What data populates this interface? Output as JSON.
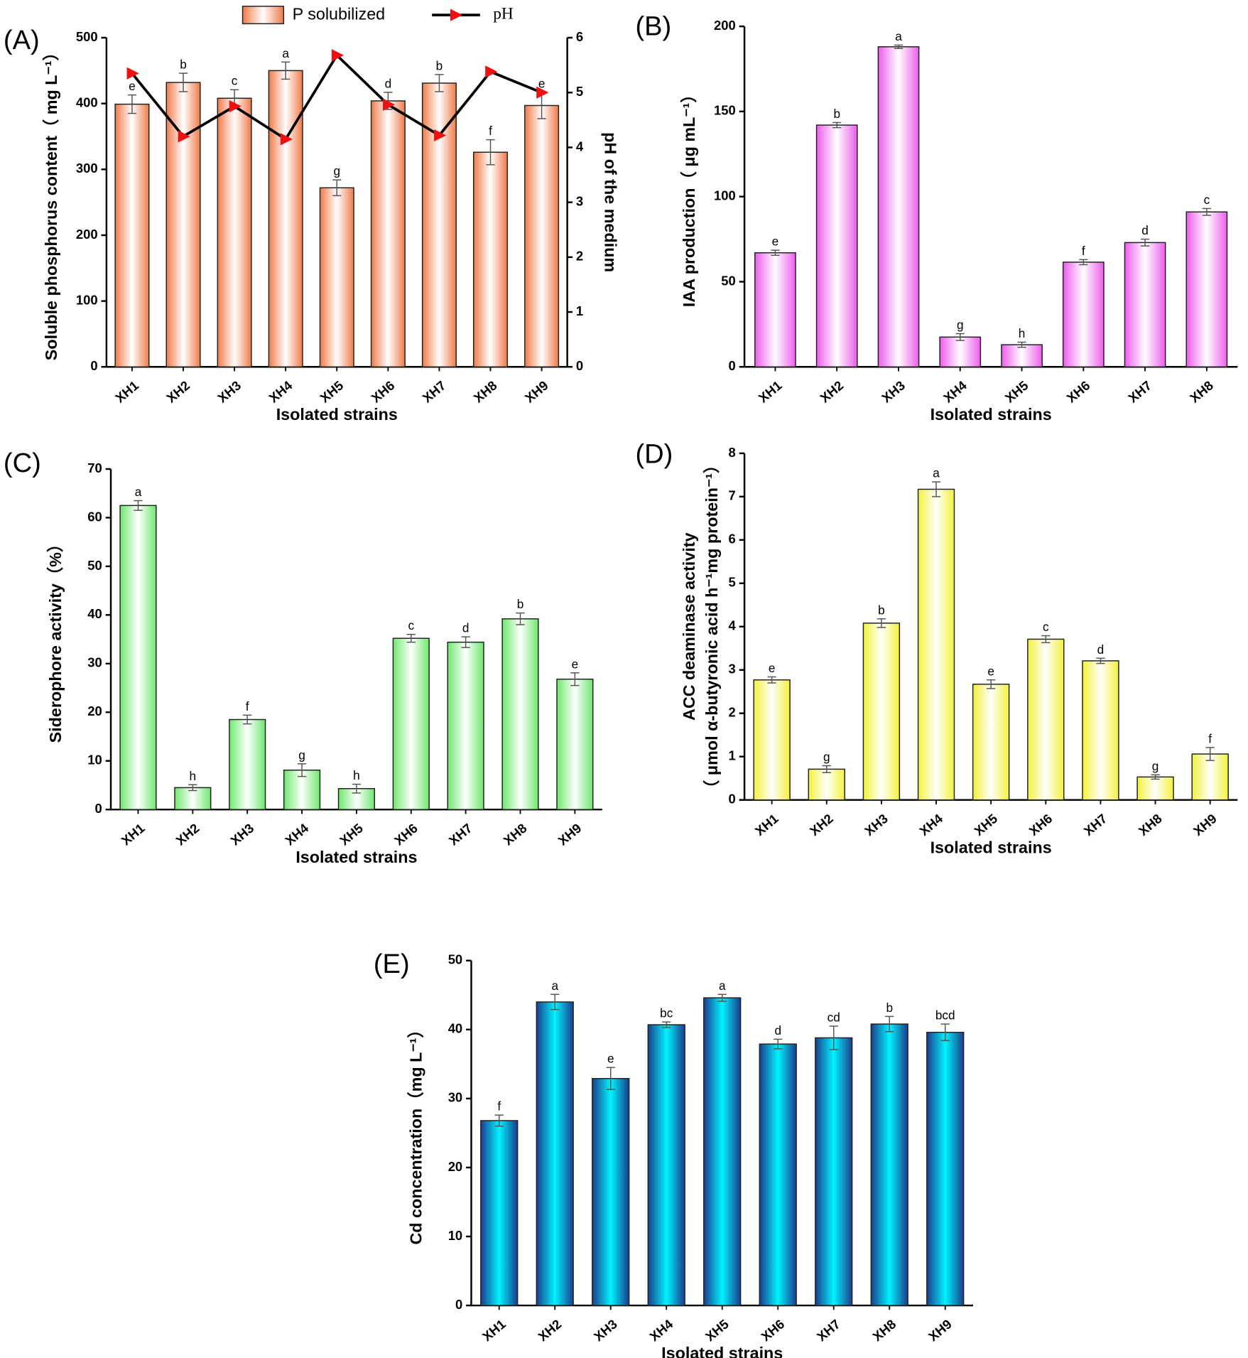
{
  "chart_data": [
    {
      "type": "bar",
      "panel": "(A)",
      "xlabel": "Isolated strains",
      "ylabel": "Soluble phosphorus content（ mg L⁻¹）",
      "y2label": "pH of the medium",
      "categories": [
        "XH1",
        "XH2",
        "XH3",
        "XH4",
        "XH5",
        "XH6",
        "XH7",
        "XH8",
        "XH9"
      ],
      "series": [
        {
          "name": "P solubilized",
          "color": "#f07b4a",
          "highlight": "#ffffff",
          "values": [
            399,
            432,
            408,
            450,
            272,
            404,
            431,
            326,
            397
          ],
          "errors": [
            14,
            14,
            13,
            13,
            12,
            13,
            13,
            19,
            20
          ],
          "annotations": [
            "e",
            "b",
            "c",
            "a",
            "g",
            "d",
            "b",
            "f",
            "e"
          ]
        },
        {
          "name": "pH",
          "type": "line",
          "axis": "y2",
          "color": "#000000",
          "marker_color": "#ee1111",
          "values": [
            5.35,
            4.2,
            4.75,
            4.15,
            5.68,
            4.78,
            4.22,
            5.38,
            5.0
          ]
        }
      ],
      "ylim": [
        0,
        500
      ],
      "yticks": [
        0,
        100,
        200,
        300,
        400,
        500
      ],
      "y2lim": [
        0,
        6
      ],
      "y2ticks": [
        0,
        1,
        2,
        3,
        4,
        5,
        6
      ]
    },
    {
      "type": "bar",
      "panel": "(B)",
      "xlabel": "Isolated strains",
      "ylabel": "IAA production（ μg mL⁻¹）",
      "categories": [
        "XH1",
        "XH2",
        "XH3",
        "XH4",
        "XH5",
        "XH6",
        "XH7",
        "XH8"
      ],
      "series": [
        {
          "color": "#ee5cee",
          "highlight": "#ffffff",
          "values": [
            67,
            142,
            188,
            17.5,
            13,
            61.5,
            73,
            91
          ],
          "errors": [
            1.5,
            1.5,
            1,
            2,
            1.5,
            1.5,
            2,
            2
          ],
          "annotations": [
            "e",
            "b",
            "a",
            "g",
            "h",
            "f",
            "d",
            "c"
          ]
        }
      ],
      "ylim": [
        0,
        200
      ],
      "yticks": [
        0,
        50,
        100,
        150,
        200
      ]
    },
    {
      "type": "bar",
      "panel": "(C)",
      "xlabel": "Isolated strains",
      "ylabel": "Siderophore activity（%）",
      "categories": [
        "XH1",
        "XH2",
        "XH3",
        "XH4",
        "XH5",
        "XH6",
        "XH7",
        "XH8",
        "XH9"
      ],
      "series": [
        {
          "color": "#6ee86e",
          "highlight": "#ffffff",
          "values": [
            62.5,
            4.5,
            18.5,
            8.1,
            4.3,
            35.2,
            34.4,
            39.2,
            26.8
          ],
          "errors": [
            1,
            0.6,
            0.9,
            1.3,
            0.9,
            0.8,
            1.1,
            1.2,
            1.3
          ],
          "annotations": [
            "a",
            "h",
            "f",
            "g",
            "h",
            "c",
            "d",
            "b",
            "e"
          ]
        }
      ],
      "ylim": [
        0,
        70
      ],
      "yticks": [
        0,
        10,
        20,
        30,
        40,
        50,
        60,
        70
      ]
    },
    {
      "type": "bar",
      "panel": "(D)",
      "xlabel": "Isolated strains",
      "ylabel": [
        "ACC deaminase activity",
        "（ μmol α-butyronic acid h⁻¹mg protein⁻¹）"
      ],
      "categories": [
        "XH1",
        "XH2",
        "XH3",
        "XH4",
        "XH5",
        "XH6",
        "XH7",
        "XH8",
        "XH9"
      ],
      "series": [
        {
          "color": "#f2f23a",
          "highlight": "#ffffff",
          "values": [
            2.77,
            0.71,
            4.08,
            7.17,
            2.67,
            3.71,
            3.21,
            0.53,
            1.06
          ],
          "errors": [
            0.07,
            0.08,
            0.1,
            0.17,
            0.1,
            0.08,
            0.06,
            0.05,
            0.15
          ],
          "annotations": [
            "e",
            "g",
            "b",
            "a",
            "e",
            "c",
            "d",
            "g",
            "f"
          ]
        }
      ],
      "ylim": [
        0,
        8
      ],
      "yticks": [
        0,
        1,
        2,
        3,
        4,
        5,
        6,
        7,
        8
      ]
    },
    {
      "type": "bar",
      "panel": "(E)",
      "xlabel": "Isolated strains",
      "ylabel": "Cd concentration（mg L⁻¹）",
      "categories": [
        "XH1",
        "XH2",
        "XH3",
        "XH4",
        "XH5",
        "XH6",
        "XH7",
        "XH8",
        "XH9"
      ],
      "series": [
        {
          "color": "#1c3c8e",
          "highlight": "#00f4ff",
          "values": [
            26.8,
            44,
            32.9,
            40.7,
            44.6,
            37.9,
            38.8,
            40.8,
            39.6
          ],
          "errors": [
            0.8,
            1.1,
            1.6,
            0.4,
            0.5,
            0.7,
            1.7,
            1.1,
            1.2
          ],
          "annotations": [
            "f",
            "a",
            "e",
            "bc",
            "a",
            "d",
            "cd",
            "b",
            "bcd"
          ]
        }
      ],
      "ylim": [
        0,
        50
      ],
      "yticks": [
        0,
        10,
        20,
        30,
        40,
        50
      ]
    }
  ]
}
